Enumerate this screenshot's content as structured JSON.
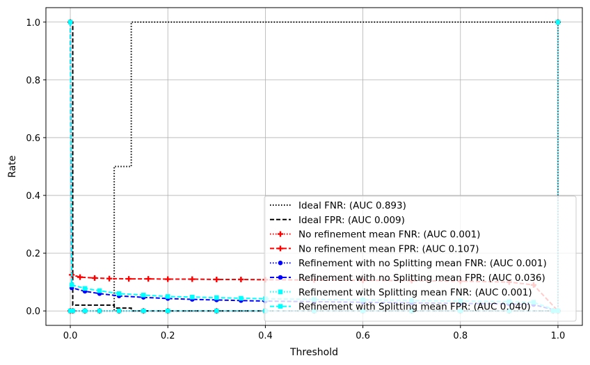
{
  "chart_data": {
    "type": "line",
    "title": "",
    "xlabel": "Threshold",
    "ylabel": "Rate",
    "xlim": [
      -0.05,
      1.05
    ],
    "ylim": [
      -0.05,
      1.05
    ],
    "xticks": [
      0.0,
      0.2,
      0.4,
      0.6,
      0.8,
      1.0
    ],
    "xtick_labels": [
      "0.0",
      "0.2",
      "0.4",
      "0.6",
      "0.8",
      "1.0"
    ],
    "yticks": [
      0.0,
      0.2,
      0.4,
      0.6,
      0.8,
      1.0
    ],
    "ytick_labels": [
      "0.0",
      "0.2",
      "0.4",
      "0.6",
      "0.8",
      "1.0"
    ],
    "grid": true,
    "legend_position": "lower-right",
    "series": [
      {
        "name": "Ideal FNR: (AUC 0.893)",
        "color": "#000000",
        "style": "dotted",
        "marker": "none",
        "drawstyle": "steps-post",
        "x": [
          0.0,
          0.09,
          0.125,
          1.0,
          1.0
        ],
        "y": [
          0.0,
          0.5,
          1.0,
          1.0,
          0.0
        ]
      },
      {
        "name": "Ideal FPR: (AUC 0.009)",
        "color": "#000000",
        "style": "dashed",
        "marker": "none",
        "drawstyle": "steps-post",
        "x": [
          0.0,
          0.005,
          0.09,
          0.125,
          1.0
        ],
        "y": [
          1.0,
          0.02,
          0.01,
          0.0,
          0.0
        ]
      },
      {
        "name": "No refinement mean FNR: (AUC 0.001)",
        "color": "#ff0000",
        "style": "dotted",
        "marker": "plus",
        "drawstyle": "line",
        "x": [
          0.0,
          0.005,
          0.03,
          0.06,
          0.1,
          0.15,
          0.2,
          0.3,
          0.4,
          0.5,
          0.6,
          0.7,
          0.8,
          0.9,
          0.99,
          1.0,
          1.0
        ],
        "y": [
          0.0,
          0.0,
          0.0,
          0.0,
          0.0,
          0.0,
          0.0,
          0.0,
          0.0,
          0.0,
          0.0,
          0.0,
          0.0,
          0.0,
          0.0,
          0.0,
          1.0
        ]
      },
      {
        "name": "No refinement mean FPR: (AUC 0.107)",
        "color": "#ff0000",
        "style": "dashed",
        "marker": "plus",
        "drawstyle": "line",
        "x": [
          0.0,
          0.003,
          0.02,
          0.05,
          0.08,
          0.12,
          0.16,
          0.2,
          0.25,
          0.3,
          0.35,
          0.4,
          0.5,
          0.6,
          0.7,
          0.8,
          0.9,
          0.95,
          1.0
        ],
        "y": [
          1.0,
          0.125,
          0.117,
          0.114,
          0.112,
          0.111,
          0.111,
          0.11,
          0.11,
          0.109,
          0.109,
          0.108,
          0.107,
          0.106,
          0.105,
          0.103,
          0.1,
          0.09,
          0.0
        ]
      },
      {
        "name": "Refinement with no Splitting mean FNR: (AUC 0.001)",
        "color": "#0000ff",
        "style": "dotted",
        "marker": "circle",
        "drawstyle": "line",
        "x": [
          0.0,
          0.005,
          0.03,
          0.06,
          0.1,
          0.15,
          0.2,
          0.3,
          0.4,
          0.5,
          0.6,
          0.7,
          0.8,
          0.9,
          0.99,
          1.0,
          1.0
        ],
        "y": [
          0.0,
          0.0,
          0.0,
          0.0,
          0.0,
          0.0,
          0.0,
          0.0,
          0.0,
          0.0,
          0.0,
          0.0,
          0.0,
          0.0,
          0.0,
          0.0,
          1.0
        ]
      },
      {
        "name": "Refinement with no Splitting mean FPR: (AUC 0.036)",
        "color": "#0000ff",
        "style": "dashed",
        "marker": "circle",
        "drawstyle": "line",
        "x": [
          0.0,
          0.003,
          0.03,
          0.06,
          0.1,
          0.15,
          0.2,
          0.25,
          0.3,
          0.35,
          0.4,
          0.5,
          0.6,
          0.7,
          0.8,
          0.9,
          0.95,
          1.0
        ],
        "y": [
          1.0,
          0.08,
          0.068,
          0.06,
          0.052,
          0.047,
          0.043,
          0.04,
          0.038,
          0.036,
          0.034,
          0.032,
          0.03,
          0.028,
          0.026,
          0.024,
          0.022,
          0.0
        ]
      },
      {
        "name": "Refinement with Splitting mean FNR: (AUC 0.001)",
        "color": "#00ffff",
        "style": "dotted",
        "marker": "square",
        "drawstyle": "line",
        "x": [
          0.0,
          0.005,
          0.03,
          0.06,
          0.1,
          0.15,
          0.2,
          0.3,
          0.4,
          0.5,
          0.6,
          0.7,
          0.8,
          0.9,
          0.99,
          1.0,
          1.0
        ],
        "y": [
          0.0,
          0.0,
          0.0,
          0.0,
          0.0,
          0.0,
          0.0,
          0.0,
          0.0,
          0.0,
          0.0,
          0.0,
          0.0,
          0.0,
          0.0,
          0.0,
          1.0
        ]
      },
      {
        "name": "Refinement with Splitting mean FPR: (AUC 0.040)",
        "color": "#00ffff",
        "style": "dashed",
        "marker": "square",
        "drawstyle": "line",
        "x": [
          0.0,
          0.003,
          0.03,
          0.06,
          0.1,
          0.15,
          0.2,
          0.25,
          0.3,
          0.35,
          0.4,
          0.5,
          0.6,
          0.7,
          0.8,
          0.9,
          0.95,
          1.0
        ],
        "y": [
          1.0,
          0.09,
          0.078,
          0.07,
          0.06,
          0.055,
          0.05,
          0.048,
          0.046,
          0.044,
          0.042,
          0.04,
          0.038,
          0.036,
          0.034,
          0.032,
          0.03,
          0.0
        ]
      }
    ]
  }
}
